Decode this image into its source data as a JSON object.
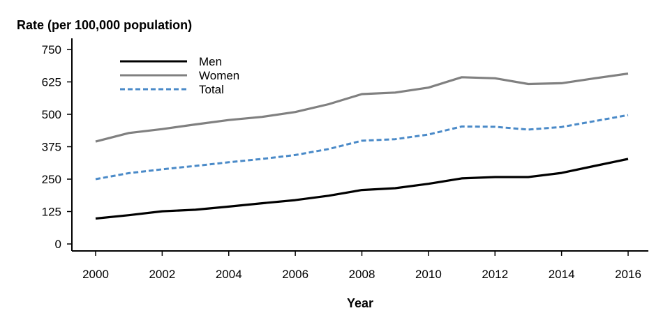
{
  "chart_data": {
    "type": "line",
    "ylabel": "Rate (per 100,000 population)",
    "xlabel": "Year",
    "x": [
      2000,
      2001,
      2002,
      2003,
      2004,
      2005,
      2006,
      2007,
      2008,
      2009,
      2010,
      2011,
      2012,
      2013,
      2014,
      2015,
      2016
    ],
    "xticks": [
      2000,
      2002,
      2004,
      2006,
      2008,
      2010,
      2012,
      2014,
      2016
    ],
    "yticks": [
      0,
      125,
      250,
      375,
      500,
      625,
      750
    ],
    "xlim": [
      1999.6,
      2016.8
    ],
    "ylim": [
      -25,
      775
    ],
    "grid": false,
    "legend_position": "top-left",
    "series": [
      {
        "name": "Men",
        "color": "#000000",
        "style": "solid",
        "values": [
          98,
          111,
          126,
          132,
          144,
          157,
          169,
          186,
          208,
          215,
          232,
          253,
          258,
          258,
          274,
          301,
          328
        ]
      },
      {
        "name": "Women",
        "color": "#808080",
        "style": "solid",
        "values": [
          395,
          428,
          443,
          461,
          478,
          490,
          509,
          539,
          578,
          584,
          603,
          643,
          639,
          617,
          620,
          639,
          657
        ]
      },
      {
        "name": "Total",
        "color": "#4a8ac8",
        "style": "dashed",
        "values": [
          250,
          273,
          288,
          301,
          315,
          328,
          343,
          366,
          398,
          404,
          422,
          453,
          452,
          441,
          451,
          474,
          497
        ]
      }
    ]
  }
}
